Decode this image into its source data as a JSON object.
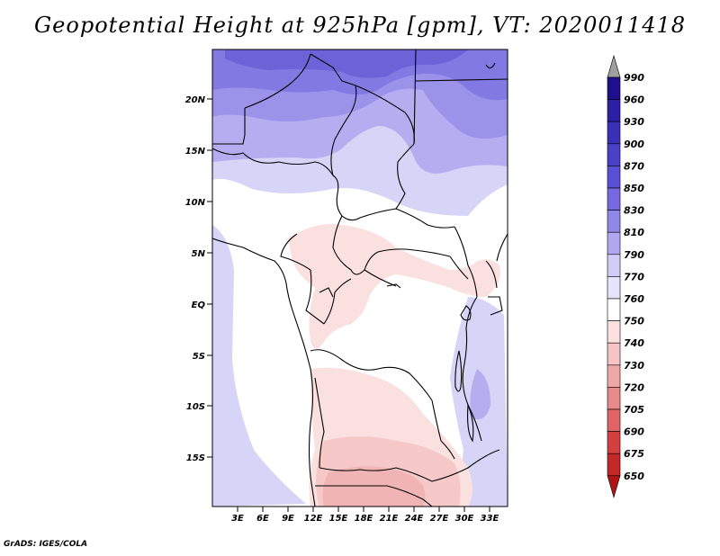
{
  "title": "Geopotential Height at 925hPa [gpm], VT: 2020011418",
  "credit": "GrADS: IGES/COLA",
  "lat_labels": [
    "20N",
    "15N",
    "10N",
    "5N",
    "EQ",
    "5S",
    "10S",
    "15S"
  ],
  "lon_labels": [
    "3E",
    "6E",
    "9E",
    "12E",
    "15E",
    "18E",
    "21E",
    "24E",
    "27E",
    "30E",
    "33E"
  ],
  "colorbar": {
    "levels": [
      "990",
      "960",
      "930",
      "900",
      "870",
      "850",
      "830",
      "810",
      "790",
      "770",
      "760",
      "750",
      "740",
      "730",
      "720",
      "705",
      "690",
      "675",
      "650"
    ],
    "colors": [
      "#a0a0a0",
      "#1e0f8c",
      "#2b1fa6",
      "#3a30b8",
      "#4a40c8",
      "#5a50d8",
      "#7568e0",
      "#9088e6",
      "#b0a8ee",
      "#d0ccf6",
      "#e6e4fa",
      "#ffffff",
      "#fbe0e0",
      "#f6c4c4",
      "#efa8a8",
      "#e88a8a",
      "#e06464",
      "#d44040",
      "#c42828",
      "#b01515"
    ]
  }
}
